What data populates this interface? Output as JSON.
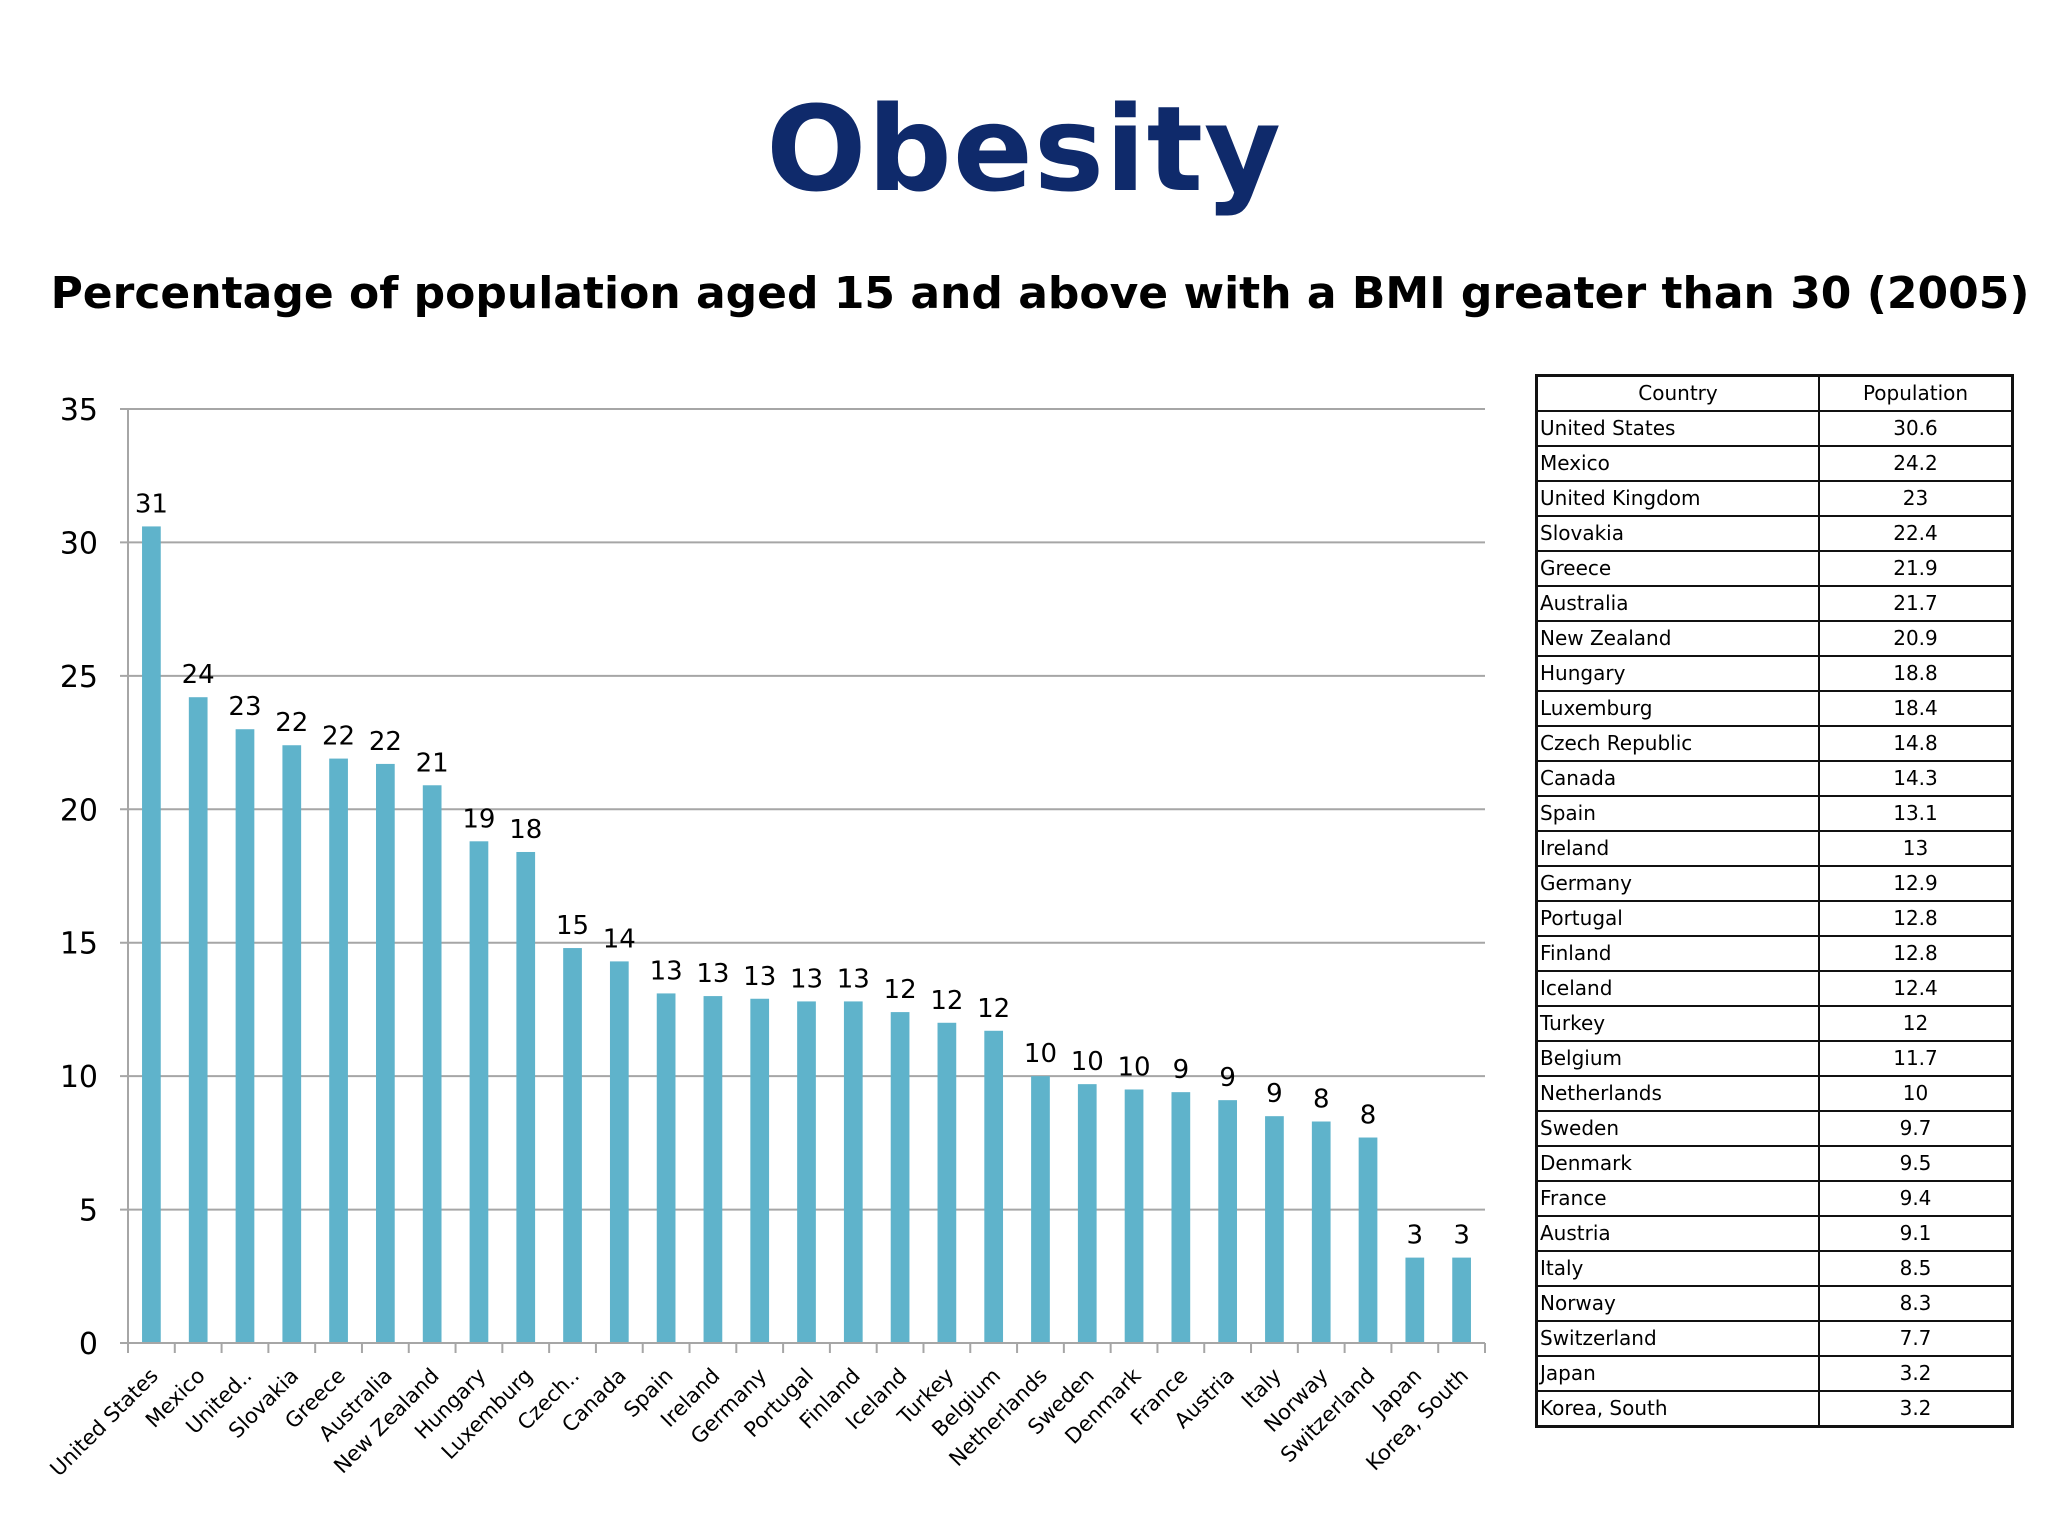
{
  "slide": {
    "title": "Obesity",
    "subtitle": "Percentage of population aged 15 and above with a BMI greater than 30 (2005)"
  },
  "colors": {
    "title": "#0f2a6b",
    "bar": "#5fb3cb",
    "grid": "#a6a6a6"
  },
  "chart_data": {
    "type": "bar",
    "title": "Percentage of population aged 15 and above with a BMI greater than 30 (2005)",
    "xlabel": "",
    "ylabel": "",
    "ylim": [
      0,
      35
    ],
    "yticks": [
      0,
      5,
      10,
      15,
      20,
      25,
      30,
      35
    ],
    "grid": true,
    "legend": "none",
    "categories": [
      "United States",
      "Mexico",
      "United..",
      "Slovakia",
      "Greece",
      "Australia",
      "New Zealand",
      "Hungary",
      "Luxemburg",
      "Czech..",
      "Canada",
      "Spain",
      "Ireland",
      "Germany",
      "Portugal",
      "Finland",
      "Iceland",
      "Turkey",
      "Belgium",
      "Netherlands",
      "Sweden",
      "Denmark",
      "France",
      "Austria",
      "Italy",
      "Norway",
      "Switzerland",
      "Japan",
      "Korea, South"
    ],
    "values": [
      30.6,
      24.2,
      23,
      22.4,
      21.9,
      21.7,
      20.9,
      18.8,
      18.4,
      14.8,
      14.3,
      13.1,
      13,
      12.9,
      12.8,
      12.8,
      12.4,
      12,
      11.7,
      10,
      9.7,
      9.5,
      9.4,
      9.1,
      8.5,
      8.3,
      7.7,
      3.2,
      3.2
    ],
    "data_labels": [
      "31",
      "24",
      "23",
      "22",
      "22",
      "22",
      "21",
      "19",
      "18",
      "15",
      "14",
      "13",
      "13",
      "13",
      "13",
      "13",
      "12",
      "12",
      "12",
      "10",
      "10",
      "10",
      "9",
      "9",
      "9",
      "8",
      "8",
      "3",
      "3"
    ]
  },
  "table": {
    "headers": [
      "Country",
      "Population"
    ],
    "rows": [
      [
        "United States",
        "30.6"
      ],
      [
        "Mexico",
        "24.2"
      ],
      [
        "United Kingdom",
        "23"
      ],
      [
        "Slovakia",
        "22.4"
      ],
      [
        "Greece",
        "21.9"
      ],
      [
        "Australia",
        "21.7"
      ],
      [
        "New Zealand",
        "20.9"
      ],
      [
        "Hungary",
        "18.8"
      ],
      [
        "Luxemburg",
        "18.4"
      ],
      [
        "Czech Republic",
        "14.8"
      ],
      [
        "Canada",
        "14.3"
      ],
      [
        "Spain",
        "13.1"
      ],
      [
        "Ireland",
        "13"
      ],
      [
        "Germany",
        "12.9"
      ],
      [
        "Portugal",
        "12.8"
      ],
      [
        "Finland",
        "12.8"
      ],
      [
        "Iceland",
        "12.4"
      ],
      [
        "Turkey",
        "12"
      ],
      [
        "Belgium",
        "11.7"
      ],
      [
        "Netherlands",
        "10"
      ],
      [
        "Sweden",
        "9.7"
      ],
      [
        "Denmark",
        "9.5"
      ],
      [
        "France",
        "9.4"
      ],
      [
        "Austria",
        "9.1"
      ],
      [
        "Italy",
        "8.5"
      ],
      [
        "Norway",
        "8.3"
      ],
      [
        "Switzerland",
        "7.7"
      ],
      [
        "Japan",
        "3.2"
      ],
      [
        "Korea, South",
        "3.2"
      ]
    ]
  }
}
